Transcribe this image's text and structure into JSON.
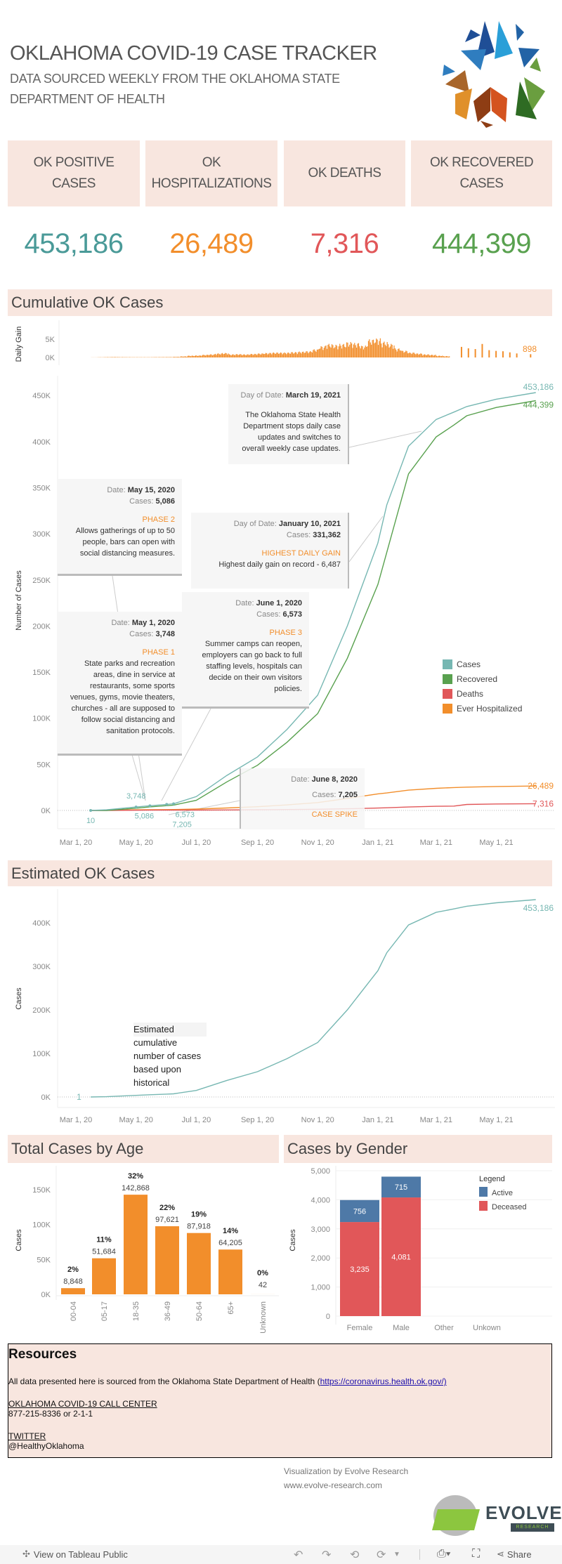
{
  "header": {
    "title": "OKLAHOMA COVID-19 CASE TRACKER",
    "subtitle": "DATA SOURCED WEEKLY FROM THE OKLAHOMA STATE DEPARTMENT OF HEALTH",
    "logo_colors": [
      "#1f4e96",
      "#2a9fd8",
      "#6a9e3f",
      "#2e6b23",
      "#d4531f",
      "#8e3d14",
      "#e0902a",
      "#a8652a"
    ]
  },
  "kpis": [
    {
      "label": "OK POSITIVE CASES",
      "value": "453,186",
      "color": "#4a9a98"
    },
    {
      "label": "OK HOSPITALIZATIONS",
      "value": "26,489",
      "color": "#f28e2b"
    },
    {
      "label": "OK DEATHS",
      "value": "7,316",
      "color": "#e15759"
    },
    {
      "label": "OK RECOVERED CASES",
      "value": "444,399",
      "color": "#59a14f"
    }
  ],
  "sections": {
    "cumulative": "Cumulative OK Cases",
    "estimated": "Estimated OK Cases",
    "age": "Total Cases by Age",
    "gender": "Cases by Gender"
  },
  "annotations": {
    "march19": {
      "k1": "Day of Date:",
      "v1": "March 19, 2021",
      "text": "The Oklahoma State Health Department stops daily case updates and switches to overall weekly case updates."
    },
    "may15": {
      "k1": "Date:",
      "v1": "May 15, 2020",
      "k2": "Cases:",
      "v2": "5,086",
      "phase": "PHASE 2",
      "text": "Allows gatherings of up to 50 people, bars can open with social distancing measures."
    },
    "jan10": {
      "k1": "Day of Date:",
      "v1": "January 10, 2021",
      "k2": "Cases:",
      "v2": "331,362",
      "phase": "HIGHEST DAILY GAIN",
      "text": "Highest daily gain on record - 6,487"
    },
    "june1": {
      "k1": "Date:",
      "v1": "June 1, 2020",
      "k2": "Cases:",
      "v2": "6,573",
      "phase": "PHASE 3",
      "text": "Summer camps can reopen, employers can go back to full staffing levels, hospitals can decide on their own visitors policies."
    },
    "may1": {
      "k1": "Date:",
      "v1": "May 1, 2020",
      "k2": "Cases:",
      "v2": "3,748",
      "phase": "PHASE 1",
      "text": "State parks and recreation areas, dine in service at restaurants, some sports venues, gyms, movie theaters, churches - all are supposed to follow social distancing and sanitation protocols."
    },
    "june8": {
      "k1": "Date:",
      "v1": "June 8, 2020",
      "k2": "Cases:",
      "v2": "7,205",
      "phase": "CASE SPIKE"
    },
    "estimated_note": "Estimated cumulative number of cases based upon historical"
  },
  "chart_data": [
    {
      "id": "daily_gain",
      "type": "bar",
      "ylabel": "Daily Gain",
      "yticks": [
        "5K",
        "0K"
      ],
      "ytick_values": [
        5000,
        0
      ],
      "color": "#f28e2b",
      "end_label": "898",
      "daily_weeks_start": "2020-03-16",
      "daily_avg_by_week": [
        20,
        50,
        80,
        100,
        80,
        70,
        60,
        60,
        60,
        80,
        90,
        100,
        150,
        250,
        400,
        450,
        600,
        700,
        900,
        1000,
        700,
        750,
        700,
        800,
        900,
        1000,
        1100,
        1100,
        1100,
        1200,
        1300,
        1400,
        1800,
        2500,
        3000,
        2800,
        3000,
        3400,
        3200,
        2600,
        4000,
        4200,
        3500,
        3000,
        2000,
        1500,
        1100,
        900,
        700,
        600,
        400,
        300
      ],
      "weekly_reports": [
        {
          "date": "2021-03-26",
          "value": 2900
        },
        {
          "date": "2021-04-02",
          "value": 2500
        },
        {
          "date": "2021-04-09",
          "value": 2300
        },
        {
          "date": "2021-04-16",
          "value": 3700
        },
        {
          "date": "2021-04-23",
          "value": 2000
        },
        {
          "date": "2021-04-30",
          "value": 1800
        },
        {
          "date": "2021-05-07",
          "value": 1700
        },
        {
          "date": "2021-05-14",
          "value": 1400
        },
        {
          "date": "2021-05-21",
          "value": 1100
        },
        {
          "date": "2021-06-04",
          "value": 898
        }
      ]
    },
    {
      "id": "cumulative",
      "type": "line",
      "ylabel": "Number of Cases",
      "yticks": [
        "450K",
        "400K",
        "350K",
        "300K",
        "250K",
        "200K",
        "150K",
        "100K",
        "50K",
        "0K"
      ],
      "ytick_values": [
        450000,
        400000,
        350000,
        300000,
        250000,
        200000,
        150000,
        100000,
        50000,
        0
      ],
      "xticks": [
        "Mar 1, 20",
        "May 1, 20",
        "Jul 1, 20",
        "Sep 1, 20",
        "Nov 1, 20",
        "Jan 1, 21",
        "Mar 1, 21",
        "May 1, 21"
      ],
      "xtick_dates": [
        "2020-03-01",
        "2020-05-01",
        "2020-07-01",
        "2020-09-01",
        "2020-11-01",
        "2021-01-01",
        "2021-03-01",
        "2021-05-01"
      ],
      "legend": [
        {
          "name": "Cases",
          "color": "#76b7b2"
        },
        {
          "name": "Recovered",
          "color": "#59a14f"
        },
        {
          "name": "Deaths",
          "color": "#e15759"
        },
        {
          "name": "Ever Hospitalized",
          "color": "#f28e2b"
        }
      ],
      "dates": [
        "2020-03-16",
        "2020-04-01",
        "2020-05-01",
        "2020-05-15",
        "2020-06-01",
        "2020-06-08",
        "2020-07-01",
        "2020-08-01",
        "2020-09-01",
        "2020-10-01",
        "2020-11-01",
        "2020-12-01",
        "2021-01-01",
        "2021-01-10",
        "2021-02-01",
        "2021-03-01",
        "2021-03-19",
        "2021-04-01",
        "2021-05-01",
        "2021-06-10"
      ],
      "series": [
        {
          "name": "Cases",
          "values": [
            10,
            719,
            3748,
            5086,
            6573,
            7205,
            15000,
            38000,
            58000,
            88000,
            125000,
            200000,
            290000,
            331362,
            395000,
            424000,
            432000,
            438000,
            446000,
            453186
          ]
        },
        {
          "name": "Recovered",
          "values": [
            0,
            0,
            2400,
            3900,
            5200,
            5800,
            11000,
            31000,
            49000,
            74000,
            105000,
            165000,
            245000,
            280000,
            365000,
            405000,
            418000,
            428000,
            437000,
            444399
          ]
        },
        {
          "name": "Deaths",
          "values": [
            0,
            30,
            230,
            280,
            350,
            360,
            400,
            550,
            780,
            1000,
            1300,
            1800,
            2600,
            2900,
            3700,
            4500,
            4700,
            6500,
            7000,
            7316
          ]
        },
        {
          "name": "Ever Hospitalized",
          "values": [
            0,
            200,
            700,
            850,
            950,
            1000,
            1500,
            2700,
            4000,
            6000,
            8500,
            13000,
            18000,
            19000,
            22000,
            24000,
            24800,
            25300,
            26000,
            26489
          ]
        }
      ],
      "point_labels": [
        {
          "date": "2020-03-16",
          "value": 10,
          "text": "10"
        },
        {
          "date": "2020-05-01",
          "value": 3748,
          "text": "3,748"
        },
        {
          "date": "2020-05-15",
          "value": 5086,
          "text": "5,086"
        },
        {
          "date": "2020-06-01",
          "value": 6573,
          "text": "6,573"
        },
        {
          "date": "2020-06-08",
          "value": 7205,
          "text": "7,205"
        }
      ],
      "end_labels": [
        "453,186",
        "444,399",
        "7,316",
        "26,489"
      ]
    },
    {
      "id": "estimated",
      "type": "line",
      "ylabel": "Cases",
      "yticks": [
        "400K",
        "300K",
        "200K",
        "100K",
        "0K"
      ],
      "ytick_values": [
        400000,
        300000,
        200000,
        100000,
        0
      ],
      "xticks": [
        "Mar 1, 20",
        "May 1, 20",
        "Jul 1, 20",
        "Sep 1, 20",
        "Nov 1, 20",
        "Jan 1, 21",
        "Mar 1, 21",
        "May 1, 21"
      ],
      "start_label": "1",
      "end_label": "453,186",
      "color": "#76b7b2"
    },
    {
      "id": "age",
      "type": "bar",
      "ylabel": "Cases",
      "yticks": [
        "150K",
        "100K",
        "50K",
        "0K"
      ],
      "ytick_values": [
        150000,
        100000,
        50000,
        0
      ],
      "categories": [
        "00-04",
        "05-17",
        "18-35",
        "36-49",
        "50-64",
        "65+",
        "Unknown"
      ],
      "values": [
        8848,
        51684,
        142868,
        97621,
        87918,
        64205,
        42
      ],
      "value_labels": [
        "8,848",
        "51,684",
        "142,868",
        "97,621",
        "87,918",
        "64,205",
        "42"
      ],
      "percent_labels": [
        "2%",
        "11%",
        "32%",
        "22%",
        "19%",
        "14%",
        "0%"
      ],
      "color": "#f28e2b"
    },
    {
      "id": "gender",
      "type": "bar",
      "stacked": true,
      "ylabel": "Cases",
      "yticks": [
        "5,000",
        "4,000",
        "3,000",
        "2,000",
        "1,000",
        "0"
      ],
      "ytick_values": [
        5000,
        4000,
        3000,
        2000,
        1000,
        0
      ],
      "categories": [
        "Female",
        "Male",
        "Other",
        "Unkown"
      ],
      "legend_title": "Legend",
      "series": [
        {
          "name": "Deceased",
          "color": "#e15759",
          "values": [
            3235,
            4081,
            0,
            0
          ],
          "labels": [
            "3,235",
            "4,081",
            "",
            ""
          ]
        },
        {
          "name": "Active",
          "color": "#4e79a7",
          "values": [
            756,
            715,
            0,
            0
          ],
          "labels": [
            "756",
            "715",
            "",
            ""
          ]
        }
      ]
    }
  ],
  "resources": {
    "title": "Resources",
    "source_text": "All data presented here is sourced from the Oklahoma State Department of Health (",
    "source_link": "https://coronavirus.health.ok.gov/)",
    "call_center_heading": "OKLAHOMA COVID-19 CALL CENTER",
    "call_center_phone": "877-215-8336 or 2-1-1",
    "twitter_heading": "TWITTER",
    "twitter_handle": "@HealthyOklahoma"
  },
  "credits": {
    "line1": "Visualization by Evolve Research",
    "line2": "www.evolve-research.com",
    "logo_text": "EVOLVE",
    "logo_sub": "RESEARCH"
  },
  "toolbar": {
    "view_label": "View on Tableau Public",
    "share_label": "Share"
  }
}
